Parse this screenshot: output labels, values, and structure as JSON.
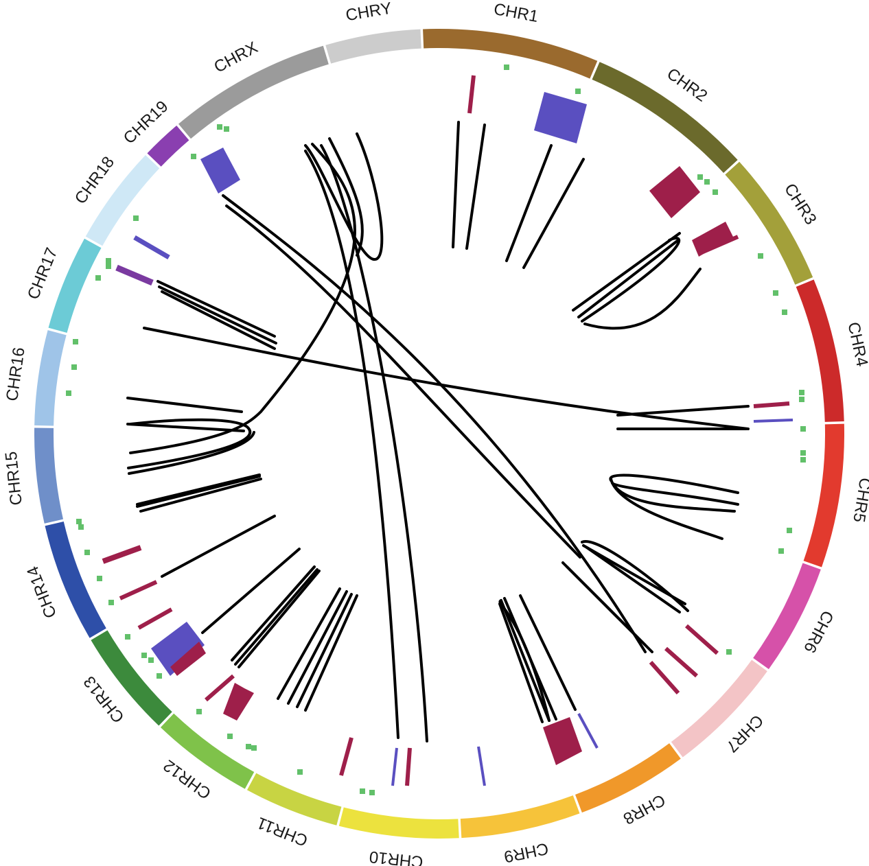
{
  "diagram": {
    "type": "circos",
    "chromosomes": [
      {
        "name": "CHR1",
        "color": "#9a6a2e",
        "span": 11.0
      },
      {
        "name": "CHR2",
        "color": "#6b6a2c",
        "span": 10.5
      },
      {
        "name": "CHR3",
        "color": "#a3a03a",
        "span": 8.5
      },
      {
        "name": "CHR4",
        "color": "#cc2a2a",
        "span": 9.0
      },
      {
        "name": "CHR5",
        "color": "#e23a2e",
        "span": 9.0
      },
      {
        "name": "CHR6",
        "color": "#d651a9",
        "span": 7.0
      },
      {
        "name": "CHR7",
        "color": "#f3c4c6",
        "span": 7.5
      },
      {
        "name": "CHR8",
        "color": "#f0982a",
        "span": 7.0
      },
      {
        "name": "CHR9",
        "color": "#f6c33a",
        "span": 7.5
      },
      {
        "name": "CHR10",
        "color": "#ece23e",
        "span": 7.5
      },
      {
        "name": "CHR11",
        "color": "#c8d443",
        "span": 6.0
      },
      {
        "name": "CHR12",
        "color": "#7fc24a",
        "span": 6.5
      },
      {
        "name": "CHR13",
        "color": "#3c8a3c",
        "span": 6.8
      },
      {
        "name": "CHR14",
        "color": "#2e4fa8",
        "span": 7.5
      },
      {
        "name": "CHR15",
        "color": "#6f8fc9",
        "span": 6.0
      },
      {
        "name": "CHR16",
        "color": "#9fc4e8",
        "span": 6.0
      },
      {
        "name": "CHR17",
        "color": "#6ccbd6",
        "span": 6.0
      },
      {
        "name": "CHR18",
        "color": "#cfe8f6",
        "span": 6.3
      },
      {
        "name": "CHR19",
        "color": "#8a3fb0",
        "span": 2.6
      },
      {
        "name": "CHRX",
        "color": "#9b9b9b",
        "span": 10.2
      },
      {
        "name": "CHRY",
        "color": "#cccccc",
        "span": 6.0
      }
    ],
    "marker_colors": {
      "crimson": "#9e1f4a",
      "blue": "#5a4fc0",
      "purple": "#7a3aa0",
      "green": "#62c06a",
      "link": "#000000"
    }
  }
}
